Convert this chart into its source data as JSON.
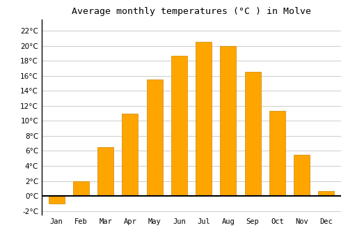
{
  "title": "Average monthly temperatures (°C ) in Molve",
  "months": [
    "Jan",
    "Feb",
    "Mar",
    "Apr",
    "May",
    "Jun",
    "Jul",
    "Aug",
    "Sep",
    "Oct",
    "Nov",
    "Dec"
  ],
  "values": [
    -1.0,
    2.0,
    6.5,
    11.0,
    15.5,
    18.7,
    20.5,
    20.0,
    16.5,
    11.3,
    5.5,
    0.7
  ],
  "bar_color": "#FFA500",
  "bar_edge_color": "#CC8800",
  "ylim": [
    -2.5,
    23.5
  ],
  "yticks": [
    -2,
    0,
    2,
    4,
    6,
    8,
    10,
    12,
    14,
    16,
    18,
    20,
    22
  ],
  "background_color": "#ffffff",
  "grid_color": "#cccccc",
  "title_fontsize": 9.5,
  "tick_fontsize": 7.5,
  "font_family": "monospace",
  "bar_width": 0.65
}
